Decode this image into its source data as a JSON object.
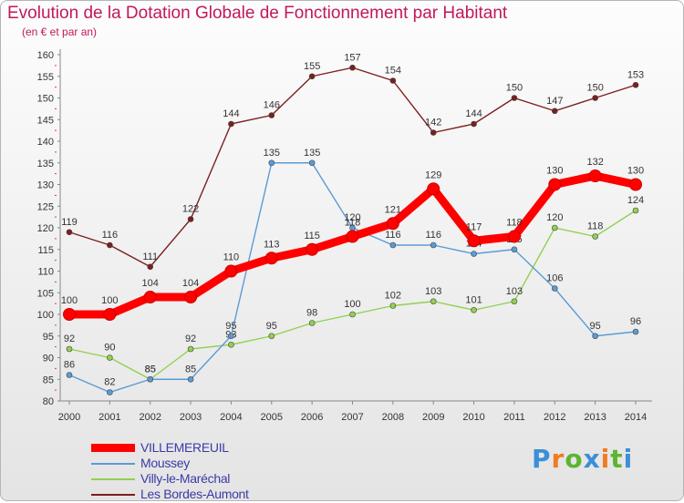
{
  "title": "Evolution de la Dotation Globale de Fonctionnement par Habitant",
  "subtitle": "(en € et par an)",
  "logo": {
    "letters": [
      "P",
      "r",
      "o",
      "x",
      "i",
      "t",
      "i"
    ],
    "colors": [
      "#3a8fd8",
      "#f07c22",
      "#5cb531",
      "#3a8fd8",
      "#f07c22",
      "#5cb531",
      "#3a8fd8"
    ]
  },
  "chart_data": {
    "type": "line",
    "title": "Evolution de la Dotation Globale de Fonctionnement par Habitant",
    "subtitle": "(en € et par an)",
    "x": [
      "2000",
      "2001",
      "2002",
      "2003",
      "2004",
      "2005",
      "2006",
      "2007",
      "2008",
      "2009",
      "2010",
      "2011",
      "2012",
      "2013",
      "2014"
    ],
    "ylim": [
      80,
      160
    ],
    "yticks": [
      80,
      85,
      90,
      95,
      100,
      105,
      110,
      115,
      120,
      125,
      130,
      135,
      140,
      145,
      150,
      155,
      160
    ],
    "grid": false,
    "legend": "bottom-left",
    "series": [
      {
        "name": "VILLEMEREUIL",
        "color": "#ff0000",
        "values": [
          100,
          100,
          104,
          104,
          110,
          113,
          115,
          118,
          121,
          129,
          117,
          118,
          130,
          132,
          130
        ]
      },
      {
        "name": "Moussey",
        "color": "#5b9bd5",
        "values": [
          86,
          82,
          85,
          85,
          95,
          135,
          135,
          120,
          116,
          116,
          114,
          115,
          106,
          95,
          96
        ]
      },
      {
        "name": "Villy-le-Maréchal",
        "color": "#92d050",
        "values": [
          92,
          90,
          85,
          92,
          93,
          95,
          98,
          100,
          102,
          103,
          101,
          103,
          120,
          118,
          124
        ]
      },
      {
        "name": "Les Bordes-Aumont",
        "color": "#7b1f1f",
        "values": [
          119,
          116,
          111,
          122,
          144,
          146,
          155,
          157,
          154,
          142,
          144,
          150,
          147,
          150,
          153
        ]
      }
    ]
  }
}
